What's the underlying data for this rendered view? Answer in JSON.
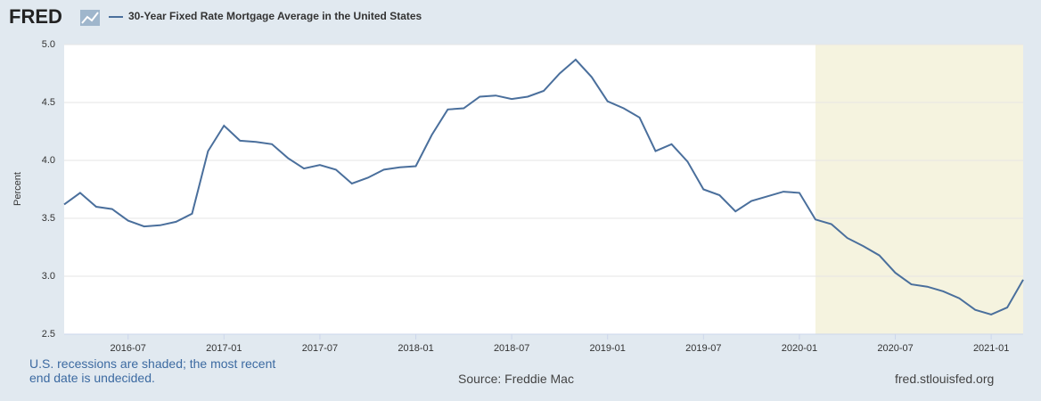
{
  "logo": "FRED",
  "chart_data": {
    "type": "line",
    "y_label": "Percent",
    "x": [
      "2016-03",
      "2016-04",
      "2016-05",
      "2016-06",
      "2016-07",
      "2016-08",
      "2016-09",
      "2016-10",
      "2016-11",
      "2016-12",
      "2017-01",
      "2017-02",
      "2017-03",
      "2017-04",
      "2017-05",
      "2017-06",
      "2017-07",
      "2017-08",
      "2017-09",
      "2017-10",
      "2017-11",
      "2017-12",
      "2018-01",
      "2018-02",
      "2018-03",
      "2018-04",
      "2018-05",
      "2018-06",
      "2018-07",
      "2018-08",
      "2018-09",
      "2018-10",
      "2018-11",
      "2018-12",
      "2019-01",
      "2019-02",
      "2019-03",
      "2019-04",
      "2019-05",
      "2019-06",
      "2019-07",
      "2019-08",
      "2019-09",
      "2019-10",
      "2019-11",
      "2019-12",
      "2020-01",
      "2020-02",
      "2020-03",
      "2020-04",
      "2020-05",
      "2020-06",
      "2020-07",
      "2020-08",
      "2020-09",
      "2020-10",
      "2020-11",
      "2020-12",
      "2021-01",
      "2021-02",
      "2021-03"
    ],
    "series": [
      {
        "name": "30-Year Fixed Rate Mortgage Average in the United States",
        "color": "#4a6f9c",
        "values": [
          3.62,
          3.72,
          3.6,
          3.58,
          3.48,
          3.43,
          3.44,
          3.47,
          3.54,
          4.08,
          4.3,
          4.17,
          4.16,
          4.14,
          4.02,
          3.93,
          3.96,
          3.92,
          3.8,
          3.85,
          3.92,
          3.94,
          3.95,
          4.22,
          4.44,
          4.45,
          4.55,
          4.56,
          4.53,
          4.55,
          4.6,
          4.75,
          4.87,
          4.72,
          4.51,
          4.45,
          4.37,
          4.08,
          4.14,
          3.99,
          3.75,
          3.7,
          3.56,
          3.65,
          3.69,
          3.73,
          3.72,
          3.49,
          3.45,
          3.33,
          3.26,
          3.18,
          3.03,
          2.93,
          2.91,
          2.87,
          2.81,
          2.71,
          2.67,
          2.73,
          2.97
        ]
      }
    ],
    "xlim": [
      "2016-03",
      "2021-03"
    ],
    "xticks": [
      "2016-07",
      "2017-01",
      "2017-07",
      "2018-01",
      "2018-07",
      "2019-01",
      "2019-07",
      "2020-01",
      "2020-07",
      "2021-01"
    ],
    "ylim": [
      2.5,
      5.0
    ],
    "yticks": [
      2.5,
      {
        "value": 3.0,
        "label": "3.0"
      },
      3.5,
      {
        "value": 4.0,
        "label": "4.0"
      },
      4.5,
      {
        "value": 5.0,
        "label": "5.0"
      }
    ],
    "grid": true,
    "recession_start": "2020-02",
    "recession_color": "#f5f3df"
  },
  "footer": {
    "note": "U.S. recessions are shaded; the most recent end date is undecided.",
    "source": "Source: Freddie Mac",
    "url": "fred.stlouisfed.org"
  }
}
